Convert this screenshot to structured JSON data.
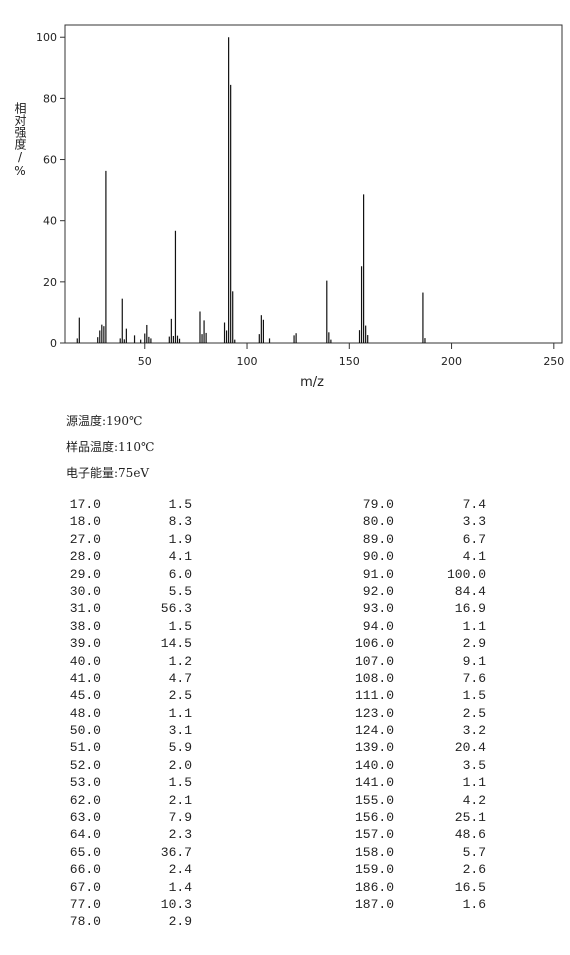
{
  "chart_data": {
    "type": "bar",
    "xlabel": "m/z",
    "ylabel": "相对强度/%",
    "color": "#111111",
    "x": [
      17,
      18,
      27,
      28,
      29,
      30,
      31,
      38,
      39,
      40,
      41,
      45,
      48,
      50,
      51,
      52,
      53,
      62,
      63,
      64,
      65,
      66,
      67,
      77,
      78,
      79,
      80,
      89,
      90,
      91,
      92,
      93,
      94,
      106,
      107,
      108,
      111,
      123,
      124,
      139,
      140,
      141,
      155,
      156,
      157,
      158,
      159,
      186,
      187
    ],
    "values": [
      1.5,
      8.3,
      1.9,
      4.1,
      6.0,
      5.5,
      56.3,
      1.5,
      14.5,
      1.2,
      4.7,
      2.5,
      1.1,
      3.1,
      5.9,
      2.0,
      1.5,
      2.1,
      7.9,
      2.3,
      36.7,
      2.4,
      1.4,
      10.3,
      2.9,
      7.4,
      3.3,
      6.7,
      4.1,
      100.0,
      84.4,
      16.9,
      1.1,
      2.9,
      9.1,
      7.6,
      1.5,
      2.5,
      3.2,
      20.4,
      3.5,
      1.1,
      4.2,
      25.1,
      48.6,
      5.7,
      2.6,
      16.5,
      1.6
    ],
    "xlim": [
      11,
      254
    ],
    "xticks": [
      50,
      100,
      150,
      200,
      250
    ],
    "ylim": [
      0,
      104
    ],
    "yticks": [
      0,
      20,
      40,
      60,
      80,
      100
    ]
  },
  "conditions": [
    "源温度:190℃",
    "样品温度:110℃",
    "电子能量:75eV"
  ],
  "peak_table": {
    "left": [
      [
        "17.0",
        "1.5"
      ],
      [
        "18.0",
        "8.3"
      ],
      [
        "27.0",
        "1.9"
      ],
      [
        "28.0",
        "4.1"
      ],
      [
        "29.0",
        "6.0"
      ],
      [
        "30.0",
        "5.5"
      ],
      [
        "31.0",
        "56.3"
      ],
      [
        "38.0",
        "1.5"
      ],
      [
        "39.0",
        "14.5"
      ],
      [
        "40.0",
        "1.2"
      ],
      [
        "41.0",
        "4.7"
      ],
      [
        "45.0",
        "2.5"
      ],
      [
        "48.0",
        "1.1"
      ],
      [
        "50.0",
        "3.1"
      ],
      [
        "51.0",
        "5.9"
      ],
      [
        "52.0",
        "2.0"
      ],
      [
        "53.0",
        "1.5"
      ],
      [
        "62.0",
        "2.1"
      ],
      [
        "63.0",
        "7.9"
      ],
      [
        "64.0",
        "2.3"
      ],
      [
        "65.0",
        "36.7"
      ],
      [
        "66.0",
        "2.4"
      ],
      [
        "67.0",
        "1.4"
      ],
      [
        "77.0",
        "10.3"
      ],
      [
        "78.0",
        "2.9"
      ]
    ],
    "right": [
      [
        "79.0",
        "7.4"
      ],
      [
        "80.0",
        "3.3"
      ],
      [
        "89.0",
        "6.7"
      ],
      [
        "90.0",
        "4.1"
      ],
      [
        "91.0",
        "100.0"
      ],
      [
        "92.0",
        "84.4"
      ],
      [
        "93.0",
        "16.9"
      ],
      [
        "94.0",
        "1.1"
      ],
      [
        "106.0",
        "2.9"
      ],
      [
        "107.0",
        "9.1"
      ],
      [
        "108.0",
        "7.6"
      ],
      [
        "111.0",
        "1.5"
      ],
      [
        "123.0",
        "2.5"
      ],
      [
        "124.0",
        "3.2"
      ],
      [
        "139.0",
        "20.4"
      ],
      [
        "140.0",
        "3.5"
      ],
      [
        "141.0",
        "1.1"
      ],
      [
        "155.0",
        "4.2"
      ],
      [
        "156.0",
        "25.1"
      ],
      [
        "157.0",
        "48.6"
      ],
      [
        "158.0",
        "5.7"
      ],
      [
        "159.0",
        "2.6"
      ],
      [
        "186.0",
        "16.5"
      ],
      [
        "187.0",
        "1.6"
      ]
    ]
  }
}
